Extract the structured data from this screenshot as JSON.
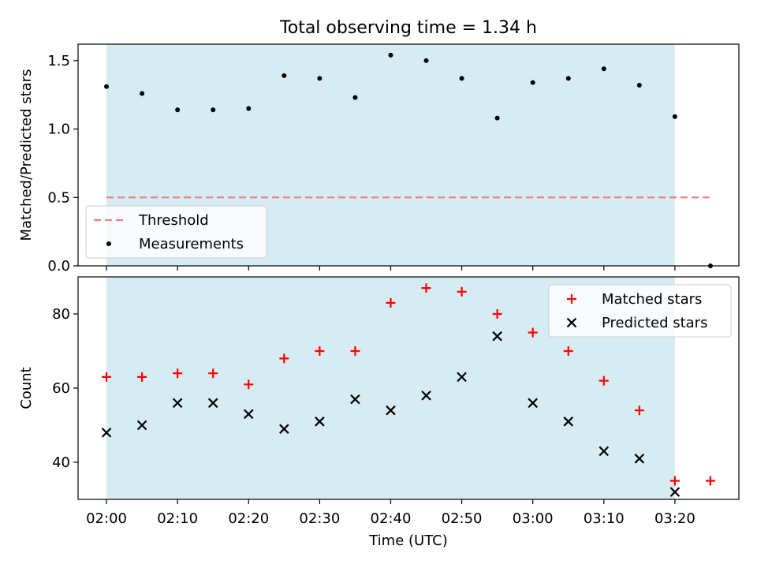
{
  "chart_data": {
    "type": "scatter",
    "title": "Total observing time = 1.34 h",
    "xlabel": "Time (UTC)",
    "x_ticks": [
      "02:00",
      "02:10",
      "02:20",
      "02:30",
      "02:40",
      "02:50",
      "03:00",
      "03:10",
      "03:20"
    ],
    "x_range": [
      "01:56",
      "03:29"
    ],
    "shaded_interval": [
      "02:00",
      "03:20"
    ],
    "shade_color": "#add8e6",
    "panels": [
      {
        "name": "ratio",
        "ylabel": "Matched/Predicted stars",
        "ylim": [
          0,
          1.62
        ],
        "y_ticks": [
          "0.0",
          "0.5",
          "1.0",
          "1.5"
        ],
        "legend_loc": "lower-left",
        "series": [
          {
            "name": "Threshold",
            "kind": "dashed-line",
            "color": "#f08080",
            "x": [
              "02:00",
              "03:25"
            ],
            "y": [
              0.5,
              0.5
            ]
          },
          {
            "name": "Measurements",
            "kind": "dot",
            "color": "#000000",
            "x": [
              "02:00",
              "02:05",
              "02:10",
              "02:15",
              "02:20",
              "02:25",
              "02:30",
              "02:35",
              "02:40",
              "02:45",
              "02:50",
              "02:55",
              "03:00",
              "03:05",
              "03:10",
              "03:15",
              "03:20",
              "03:25"
            ],
            "y": [
              1.31,
              1.26,
              1.14,
              1.14,
              1.15,
              1.39,
              1.37,
              1.23,
              1.54,
              1.5,
              1.37,
              1.08,
              1.34,
              1.37,
              1.44,
              1.32,
              1.09,
              0.0
            ]
          }
        ]
      },
      {
        "name": "counts",
        "ylabel": "Count",
        "ylim": [
          30,
          90
        ],
        "y_ticks": [
          "40",
          "60",
          "80"
        ],
        "legend_loc": "upper-right",
        "series": [
          {
            "name": "Matched stars",
            "kind": "plus",
            "color": "#ff0000",
            "x": [
              "02:00",
              "02:05",
              "02:10",
              "02:15",
              "02:20",
              "02:25",
              "02:30",
              "02:35",
              "02:40",
              "02:45",
              "02:50",
              "02:55",
              "03:00",
              "03:05",
              "03:10",
              "03:15",
              "03:20",
              "03:25"
            ],
            "y": [
              63,
              63,
              64,
              64,
              61,
              68,
              70,
              70,
              83,
              87,
              86,
              80,
              75,
              70,
              62,
              54,
              35,
              35
            ]
          },
          {
            "name": "Predicted stars",
            "kind": "x",
            "color": "#000000",
            "x": [
              "02:00",
              "02:05",
              "02:10",
              "02:15",
              "02:20",
              "02:25",
              "02:30",
              "02:35",
              "02:40",
              "02:45",
              "02:50",
              "02:55",
              "03:00",
              "03:05",
              "03:10",
              "03:15",
              "03:20"
            ],
            "y": [
              48,
              50,
              56,
              56,
              53,
              49,
              51,
              57,
              54,
              58,
              63,
              74,
              56,
              51,
              43,
              41,
              32
            ]
          }
        ]
      }
    ]
  }
}
